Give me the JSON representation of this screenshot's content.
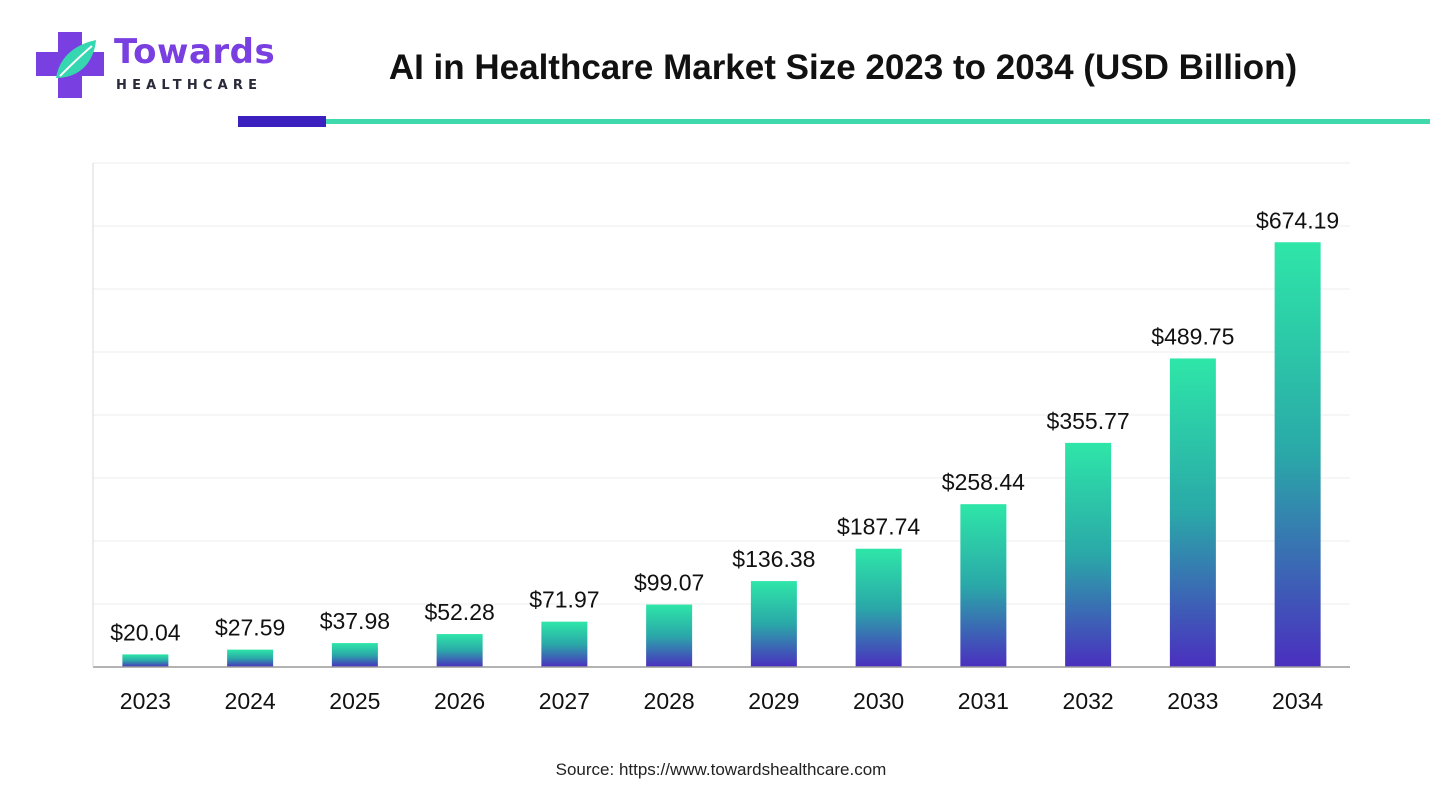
{
  "brand": {
    "name": "Towards",
    "subname": "HEALTHCARE"
  },
  "header": {
    "title": "AI in Healthcare Market Size 2023 to 2034 (USD Billion)"
  },
  "colors": {
    "brand_purple": "#7a3fe0",
    "accent_bar": "#3c1fbf",
    "accent_line": "#3fd9ad",
    "bar_top": "#2ee6a8",
    "bar_bottom": "#4a2fbf"
  },
  "chart_data": {
    "type": "bar",
    "title": "AI in Healthcare Market Size 2023 to 2034 (USD Billion)",
    "xlabel": "",
    "ylabel": "",
    "categories": [
      "2023",
      "2024",
      "2025",
      "2026",
      "2027",
      "2028",
      "2029",
      "2030",
      "2031",
      "2032",
      "2033",
      "2034"
    ],
    "values": [
      20.04,
      27.59,
      37.98,
      52.28,
      71.97,
      99.07,
      136.38,
      187.74,
      258.44,
      355.77,
      489.75,
      674.19
    ],
    "value_labels": [
      "$20.04",
      "$27.59",
      "$37.98",
      "$52.28",
      "$71.97",
      "$99.07",
      "$136.38",
      "$187.74",
      "$258.44",
      "$355.77",
      "$489.75",
      "$674.19"
    ],
    "ylim": [
      0,
      800
    ],
    "grid": true,
    "legend": "none"
  },
  "footer": {
    "source": "Source: https://www.towardshealthcare.com"
  }
}
